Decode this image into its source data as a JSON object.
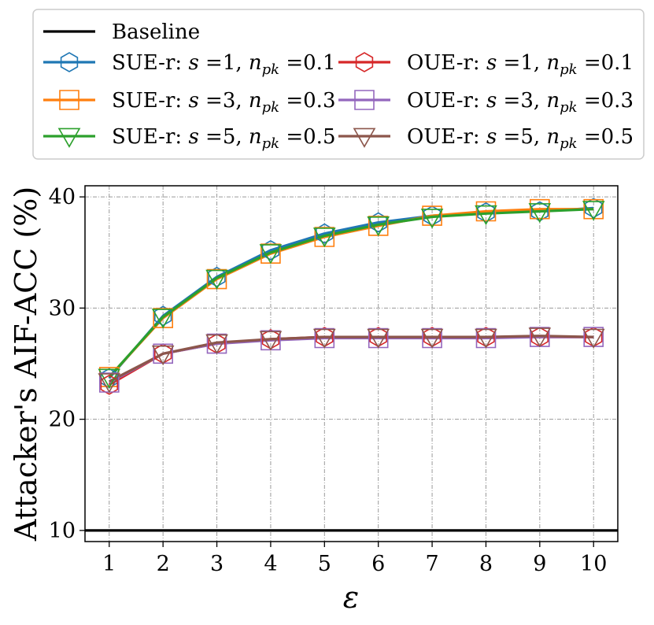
{
  "chart_data": {
    "type": "line",
    "xlabel": "ε",
    "ylabel": "Attacker's AIF-ACC (%)",
    "x": [
      1,
      2,
      3,
      4,
      5,
      6,
      7,
      8,
      9,
      10
    ],
    "xticks": [
      "1",
      "2",
      "3",
      "4",
      "5",
      "6",
      "7",
      "8",
      "9",
      "10"
    ],
    "yticks": [
      "10",
      "20",
      "30",
      "40"
    ],
    "xlim": [
      0.55,
      10.45
    ],
    "ylim": [
      9,
      41
    ],
    "grid": true,
    "legend_position": "top, outside plot, 2 columns",
    "baseline": {
      "name": "Baseline",
      "value": 10,
      "color": "#000000"
    },
    "series": [
      {
        "name": "SUE-r: s =1, n_pk =0.1",
        "label_prefix": "SUE-r:",
        "s": "1",
        "npk": "0.1",
        "color": "#1f77b4",
        "marker": "hexagon",
        "values": [
          23.7,
          29.3,
          32.8,
          35.2,
          36.7,
          37.7,
          38.3,
          38.6,
          38.7,
          39.0
        ]
      },
      {
        "name": "SUE-r: s =3, n_pk =0.3",
        "label_prefix": "SUE-r:",
        "s": "3",
        "npk": "0.3",
        "color": "#ff7f0e",
        "marker": "square",
        "values": [
          23.8,
          29.1,
          32.6,
          34.9,
          36.4,
          37.4,
          38.3,
          38.7,
          38.9,
          38.9
        ]
      },
      {
        "name": "SUE-r: s =5, n_pk =0.5",
        "label_prefix": "SUE-r:",
        "s": "5",
        "npk": "0.5",
        "color": "#2ca02c",
        "marker": "triangle-down",
        "values": [
          23.8,
          29.2,
          32.7,
          35.0,
          36.5,
          37.5,
          38.2,
          38.5,
          38.7,
          38.9
        ]
      },
      {
        "name": "OUE-r: s =1, n_pk =0.1",
        "label_prefix": "OUE-r:",
        "s": "1",
        "npk": "0.1",
        "color": "#d62728",
        "marker": "hexagon",
        "values": [
          23.1,
          25.9,
          26.8,
          27.2,
          27.4,
          27.4,
          27.4,
          27.4,
          27.4,
          27.4
        ]
      },
      {
        "name": "OUE-r: s =3, n_pk =0.3",
        "label_prefix": "OUE-r:",
        "s": "3",
        "npk": "0.3",
        "color": "#9467bd",
        "marker": "square",
        "values": [
          23.3,
          25.9,
          26.8,
          27.1,
          27.3,
          27.3,
          27.3,
          27.3,
          27.4,
          27.4
        ]
      },
      {
        "name": "OUE-r: s =5, n_pk =0.5",
        "label_prefix": "OUE-r:",
        "s": "5",
        "npk": "0.5",
        "color": "#8c564b",
        "marker": "triangle-down",
        "values": [
          23.4,
          25.9,
          26.9,
          27.2,
          27.4,
          27.4,
          27.4,
          27.4,
          27.5,
          27.4
        ]
      }
    ]
  }
}
